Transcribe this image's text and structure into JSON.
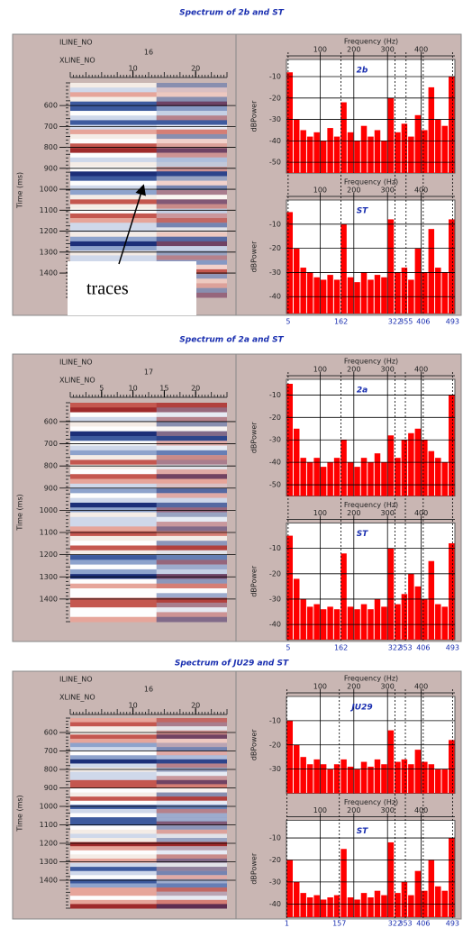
{
  "chart_data": [
    {
      "type": "seismic-spectra",
      "title": "Spectrum of 2b and ST",
      "annotation": "traces",
      "section": {
        "iline_label": "ILINE_NO",
        "xline_label": "XLINE_NO",
        "iline_value": "16",
        "y_label": "Time (ms)",
        "xlim": [
          0,
          25
        ],
        "xticks": [
          10,
          20
        ],
        "ylim": [
          492,
          1516
        ],
        "yticks": [
          600,
          700,
          800,
          900,
          1000,
          1100,
          1200,
          1300,
          1400
        ]
      },
      "markers": [
        5,
        162,
        322,
        355,
        406,
        493
      ],
      "spectra": [
        {
          "name": "2b",
          "x_label": "Frequency (Hz)",
          "y_label": "dBPower",
          "color": "#ff0000",
          "xlim": [
            0,
            500
          ],
          "xticks": [
            100,
            200,
            300,
            400
          ],
          "ylim": [
            -55,
            -2
          ],
          "yticks": [
            -10,
            -20,
            -30,
            -40,
            -50
          ],
          "values": [
            -8,
            -30,
            -35,
            -38,
            -36,
            -40,
            -34,
            -38,
            -22,
            -36,
            -40,
            -33,
            -38,
            -35,
            -40,
            -20,
            -36,
            -32,
            -38,
            -28,
            -35,
            -15,
            -30,
            -33,
            -10
          ]
        },
        {
          "name": "ST",
          "x_label": "Frequency (Hz)",
          "y_label": "dBPower",
          "color": "#ff0000",
          "xlim": [
            0,
            500
          ],
          "xticks": [
            100,
            200,
            300,
            400
          ],
          "ylim": [
            -47,
            0
          ],
          "yticks": [
            -10,
            -20,
            -30,
            -40
          ],
          "values": [
            -5,
            -20,
            -28,
            -30,
            -32,
            -33,
            -31,
            -33,
            -10,
            -32,
            -34,
            -30,
            -33,
            -31,
            -32,
            -8,
            -30,
            -28,
            -33,
            -20,
            -30,
            -12,
            -28,
            -30,
            -8
          ]
        }
      ]
    },
    {
      "type": "seismic-spectra",
      "title": "Spectrum of 2a and ST",
      "section": {
        "iline_label": "ILINE_NO",
        "xline_label": "XLINE_NO",
        "iline_value": "17",
        "y_label": "Time (ms)",
        "xlim": [
          0,
          25
        ],
        "xticks": [
          5,
          10,
          15,
          20
        ],
        "ylim": [
          515,
          1502
        ],
        "yticks": [
          600,
          700,
          800,
          900,
          1000,
          1100,
          1200,
          1300,
          1400
        ]
      },
      "markers": [
        5,
        162,
        322,
        353,
        406,
        493
      ],
      "spectra": [
        {
          "name": "2a",
          "x_label": "Frequency (Hz)",
          "y_label": "dBPower",
          "color": "#ff0000",
          "xlim": [
            0,
            500
          ],
          "xticks": [
            100,
            200,
            300,
            400
          ],
          "ylim": [
            -55,
            -3
          ],
          "yticks": [
            -10,
            -20,
            -30,
            -40,
            -50
          ],
          "values": [
            -5,
            -25,
            -38,
            -40,
            -38,
            -42,
            -40,
            -38,
            -30,
            -40,
            -42,
            -38,
            -40,
            -36,
            -40,
            -28,
            -38,
            -30,
            -27,
            -25,
            -30,
            -35,
            -38,
            -40,
            -10
          ]
        },
        {
          "name": "ST",
          "x_label": "Frequency (Hz)",
          "y_label": "dBPower",
          "color": "#ff0000",
          "xlim": [
            0,
            500
          ],
          "xticks": [
            100,
            200,
            300,
            400
          ],
          "ylim": [
            -46,
            0
          ],
          "yticks": [
            -10,
            -20,
            -30,
            -40
          ],
          "values": [
            -5,
            -22,
            -30,
            -33,
            -32,
            -34,
            -33,
            -34,
            -12,
            -33,
            -34,
            -32,
            -34,
            -30,
            -33,
            -10,
            -32,
            -28,
            -20,
            -25,
            -30,
            -15,
            -32,
            -33,
            -8
          ]
        }
      ]
    },
    {
      "type": "seismic-spectra",
      "title": "Spectrum of JU29 and ST",
      "section": {
        "iline_label": "ILINE_NO",
        "xline_label": "XLINE_NO",
        "iline_value": "16",
        "y_label": "Time (ms)",
        "xlim": [
          0,
          25
        ],
        "xticks": [
          10,
          20
        ],
        "ylim": [
          522,
          1551
        ],
        "yticks": [
          600,
          700,
          800,
          900,
          1000,
          1100,
          1200,
          1300,
          1400
        ]
      },
      "markers": [
        1,
        157,
        322,
        353,
        406,
        493
      ],
      "spectra": [
        {
          "name": "JU29",
          "x_label": "Frequency (Hz)",
          "y_label": "dBPower",
          "color": "#ff0000",
          "xlim": [
            0,
            500
          ],
          "xticks": [
            100,
            200,
            300,
            400
          ],
          "ylim": [
            -40,
            0
          ],
          "yticks": [
            -10,
            -20,
            -30
          ],
          "values": [
            -10,
            -20,
            -25,
            -28,
            -26,
            -28,
            -30,
            -28,
            -26,
            -29,
            -30,
            -27,
            -29,
            -26,
            -28,
            -14,
            -27,
            -26,
            -28,
            -22,
            -27,
            -28,
            -30,
            -30,
            -18
          ]
        },
        {
          "name": "ST",
          "x_label": "Frequency (Hz)",
          "y_label": "dBPower",
          "color": "#ff0000",
          "xlim": [
            0,
            500
          ],
          "xticks": [
            100,
            200,
            300,
            400
          ],
          "ylim": [
            -46,
            -2
          ],
          "yticks": [
            -10,
            -20,
            -30,
            -40
          ],
          "values": [
            -20,
            -30,
            -35,
            -37,
            -36,
            -38,
            -37,
            -36,
            -15,
            -37,
            -38,
            -35,
            -37,
            -34,
            -36,
            -12,
            -35,
            -30,
            -36,
            -25,
            -34,
            -20,
            -32,
            -34,
            -10
          ]
        }
      ]
    }
  ]
}
